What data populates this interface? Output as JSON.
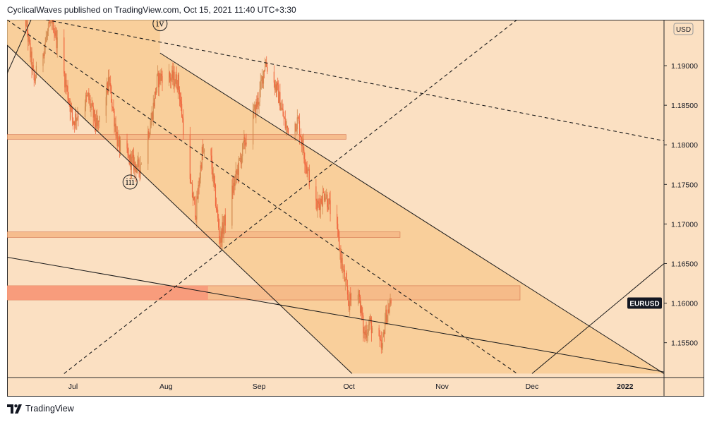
{
  "header": {
    "text": "CyclicalWaves published on TradingView.com, Oct 15, 2021 11:40 UTC+3:30"
  },
  "footer": {
    "brand": "TradingView",
    "logo_icon": "tradingview-logo-icon"
  },
  "chart_data": {
    "type": "candlestick",
    "symbol": "EURUSD",
    "currency": "USD",
    "x_ticks": [
      "Jul",
      "Aug",
      "Sep",
      "Oct",
      "Nov",
      "Dec",
      "2022"
    ],
    "y_ticks": [
      1.19,
      1.185,
      1.18,
      1.175,
      1.17,
      1.165,
      1.16,
      1.155
    ],
    "y_tick_labels": [
      "1.19000",
      "1.18500",
      "1.18000",
      "1.17500",
      "1.17000",
      "1.16500",
      "1.16000",
      "1.15500"
    ],
    "ylim": [
      1.1506,
      1.1958
    ],
    "xlim": [
      "2021-06-09",
      "2022-01-14"
    ],
    "grid": false,
    "colors": {
      "background": "#fbe0c2",
      "shaded_region": "#f8c98e",
      "up_candle": "#d38a4f",
      "down_candle": "#f0683f",
      "zone_fill": "#f6b886",
      "zone_strong_fill": "#f8987a",
      "zone_border": "#d87a53",
      "line": "#1b1b1b",
      "price_label_bg": "#131722"
    },
    "last_price_label": "EURUSD",
    "wave_labels": [
      {
        "text": "iii",
        "date": "2021-07-20",
        "price": 1.1753
      },
      {
        "text": "iv",
        "date": "2021-07-30",
        "price": 1.1953
      }
    ],
    "zones": [
      {
        "from": "2021-06-09",
        "to": "2021-09-30",
        "top": 1.1813,
        "bottom": 1.1807
      },
      {
        "from": "2021-06-09",
        "to": "2021-10-18",
        "top": 1.169,
        "bottom": 1.1683
      },
      {
        "from": "2021-06-09",
        "to": "2021-11-27",
        "top": 1.1622,
        "bottom": 1.1604,
        "strong_until": "2021-08-15"
      }
    ],
    "price_series": {
      "interval": "1H",
      "anchors": [
        {
          "date": "2021-06-14",
          "price": 1.199
        },
        {
          "date": "2021-06-18",
          "price": 1.188
        },
        {
          "date": "2021-06-24",
          "price": 1.196
        },
        {
          "date": "2021-06-29",
          "price": 1.187
        },
        {
          "date": "2021-07-01",
          "price": 1.183
        },
        {
          "date": "2021-07-06",
          "price": 1.186
        },
        {
          "date": "2021-07-09",
          "price": 1.182
        },
        {
          "date": "2021-07-13",
          "price": 1.188
        },
        {
          "date": "2021-07-16",
          "price": 1.18
        },
        {
          "date": "2021-07-20",
          "price": 1.178
        },
        {
          "date": "2021-07-23",
          "price": 1.177
        },
        {
          "date": "2021-07-27",
          "price": 1.183
        },
        {
          "date": "2021-07-29",
          "price": 1.188
        },
        {
          "date": "2021-07-31",
          "price": 1.189
        },
        {
          "date": "2021-08-05",
          "price": 1.188
        },
        {
          "date": "2021-08-09",
          "price": 1.175
        },
        {
          "date": "2021-08-11",
          "price": 1.1715
        },
        {
          "date": "2021-08-13",
          "price": 1.179
        },
        {
          "date": "2021-08-16",
          "price": 1.178
        },
        {
          "date": "2021-08-19",
          "price": 1.168
        },
        {
          "date": "2021-08-23",
          "price": 1.174
        },
        {
          "date": "2021-08-27",
          "price": 1.18
        },
        {
          "date": "2021-09-01",
          "price": 1.186
        },
        {
          "date": "2021-09-03",
          "price": 1.1905
        },
        {
          "date": "2021-09-07",
          "price": 1.187
        },
        {
          "date": "2021-09-10",
          "price": 1.182
        },
        {
          "date": "2021-09-14",
          "price": 1.183
        },
        {
          "date": "2021-09-17",
          "price": 1.177
        },
        {
          "date": "2021-09-20",
          "price": 1.172
        },
        {
          "date": "2021-09-23",
          "price": 1.174
        },
        {
          "date": "2021-09-27",
          "price": 1.169
        },
        {
          "date": "2021-09-29",
          "price": 1.164
        },
        {
          "date": "2021-10-01",
          "price": 1.16
        },
        {
          "date": "2021-10-04",
          "price": 1.162
        },
        {
          "date": "2021-10-06",
          "price": 1.156
        },
        {
          "date": "2021-10-08",
          "price": 1.1575
        },
        {
          "date": "2021-10-12",
          "price": 1.154
        },
        {
          "date": "2021-10-13",
          "price": 1.158
        },
        {
          "date": "2021-10-15",
          "price": 1.16
        }
      ]
    },
    "trendlines": [
      {
        "style": "solid",
        "from": {
          "date": "2021-06-09",
          "price": 1.1926
        },
        "to": {
          "date": "2021-10-02",
          "price": 1.1511
        }
      },
      {
        "style": "solid",
        "from": {
          "date": "2021-07-30",
          "price": 1.1916
        },
        "to": {
          "date": "2022-01-14",
          "price": 1.1511
        }
      },
      {
        "style": "solid",
        "from": {
          "date": "2021-06-09",
          "price": 1.1658
        },
        "to": {
          "date": "2022-01-14",
          "price": 1.1513
        }
      },
      {
        "style": "solid",
        "from": {
          "date": "2021-12-01",
          "price": 1.1511
        },
        "to": {
          "date": "2022-01-14",
          "price": 1.165
        }
      },
      {
        "style": "solid",
        "from": {
          "date": "2021-06-09",
          "price": 1.189
        },
        "to": {
          "date": "2021-06-17",
          "price": 1.1958
        }
      },
      {
        "style": "dashed",
        "from": {
          "date": "2021-06-22",
          "price": 1.1958
        },
        "to": {
          "date": "2022-01-14",
          "price": 1.1805
        }
      },
      {
        "style": "dashed",
        "from": {
          "date": "2021-06-09",
          "price": 1.1958
        },
        "to": {
          "date": "2021-11-26",
          "price": 1.1511
        }
      },
      {
        "style": "dashed",
        "from": {
          "date": "2021-06-28",
          "price": 1.1511
        },
        "to": {
          "date": "2021-11-26",
          "price": 1.1958
        }
      }
    ]
  }
}
